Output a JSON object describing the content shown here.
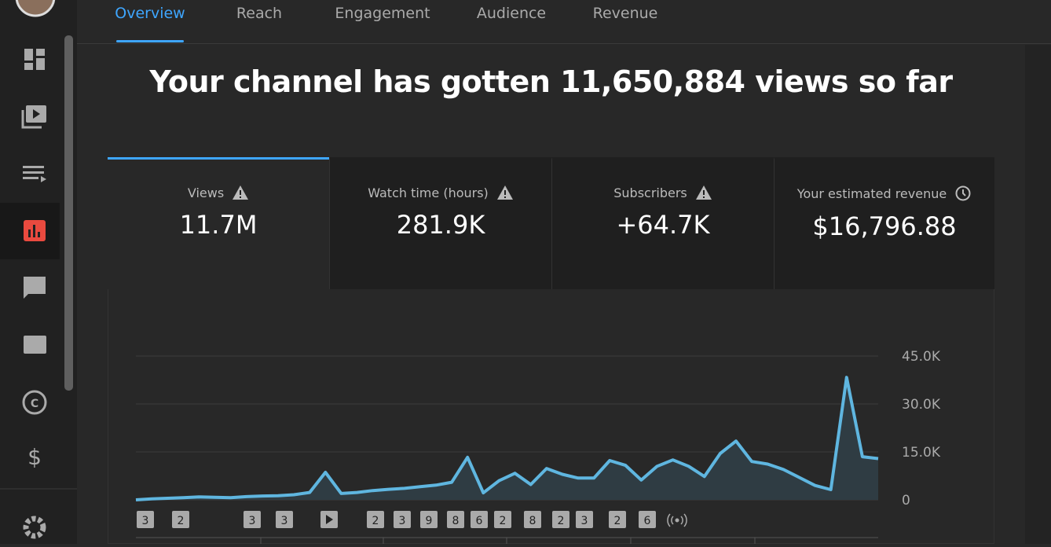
{
  "tabs": [
    "Overview",
    "Reach",
    "Engagement",
    "Audience",
    "Revenue"
  ],
  "headline": "Your channel has gotten 11,650,884 views so far",
  "cards": [
    {
      "label": "Views",
      "value": "11.7M"
    },
    {
      "label": "Watch time (hours)",
      "value": "281.9K"
    },
    {
      "label": "Subscribers",
      "value": "+64.7K"
    },
    {
      "label": "Your estimated revenue",
      "value": "$16,796.88"
    }
  ],
  "chart_data": {
    "type": "area",
    "values": [
      0,
      300,
      500,
      700,
      900,
      800,
      700,
      1000,
      1200,
      1300,
      1600,
      2300,
      8600,
      2000,
      2300,
      2900,
      3300,
      3600,
      4100,
      4600,
      5500,
      13300,
      2200,
      6000,
      8300,
      4800,
      9800,
      8000,
      6800,
      6800,
      12300,
      10800,
      6200,
      10500,
      12500,
      10500,
      7300,
      14500,
      18400,
      12000,
      11200,
      9500,
      7000,
      4500,
      3200,
      38300,
      13500,
      12900
    ],
    "color": "#5fb6e0",
    "ylim": [
      0,
      45000
    ],
    "yticks": [
      0,
      {
        "value": 15000,
        "label": "15.0K"
      },
      {
        "value": 30000,
        "label": "30.0K"
      },
      {
        "value": 45000,
        "label": "45.0K"
      }
    ],
    "grid": true
  },
  "markers": [
    "3",
    "2",
    "3",
    "3",
    "2",
    "3",
    "9",
    "8",
    "6",
    "2",
    "8",
    "2",
    "3",
    "2",
    "6"
  ]
}
